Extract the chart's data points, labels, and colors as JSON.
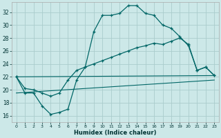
{
  "xlabel": "Humidex (Indice chaleur)",
  "bg_color": "#cce8e8",
  "grid_color": "#aacccc",
  "line_color": "#006666",
  "xlim": [
    -0.5,
    23.5
  ],
  "ylim": [
    15.0,
    33.5
  ],
  "xticks": [
    0,
    1,
    2,
    3,
    4,
    5,
    6,
    7,
    8,
    9,
    10,
    11,
    12,
    13,
    14,
    15,
    16,
    17,
    18,
    19,
    20,
    21,
    22,
    23
  ],
  "yticks": [
    16,
    18,
    20,
    22,
    24,
    26,
    28,
    30,
    32
  ],
  "series1_x": [
    0,
    1,
    2,
    3,
    4,
    5,
    6,
    7,
    8,
    9,
    10,
    11,
    12,
    13,
    14,
    15,
    16,
    17,
    18,
    19,
    20,
    21,
    22,
    23
  ],
  "series1_y": [
    22,
    19.5,
    19.5,
    17.5,
    16.2,
    16.5,
    17.0,
    21.5,
    23.5,
    29.0,
    31.5,
    31.5,
    31.8,
    33.0,
    33.0,
    31.8,
    31.5,
    30.0,
    29.5,
    28.2,
    26.8,
    23.0,
    23.5,
    22.2
  ],
  "series2_x": [
    0,
    1,
    2,
    3,
    4,
    5,
    6,
    7,
    8,
    9,
    10,
    11,
    12,
    13,
    14,
    15,
    16,
    17,
    18,
    19,
    20,
    21,
    22,
    23
  ],
  "series2_y": [
    22,
    20.2,
    20.0,
    19.5,
    19.0,
    19.5,
    21.5,
    23.0,
    23.5,
    24.0,
    24.5,
    25.0,
    25.5,
    26.0,
    26.5,
    26.8,
    27.2,
    27.0,
    27.5,
    28.0,
    27.0,
    23.0,
    23.5,
    22.2
  ],
  "series3_x": [
    0,
    23
  ],
  "series3_y": [
    22,
    22.2
  ],
  "series4_x": [
    0,
    23
  ],
  "series4_y": [
    19.5,
    21.5
  ]
}
